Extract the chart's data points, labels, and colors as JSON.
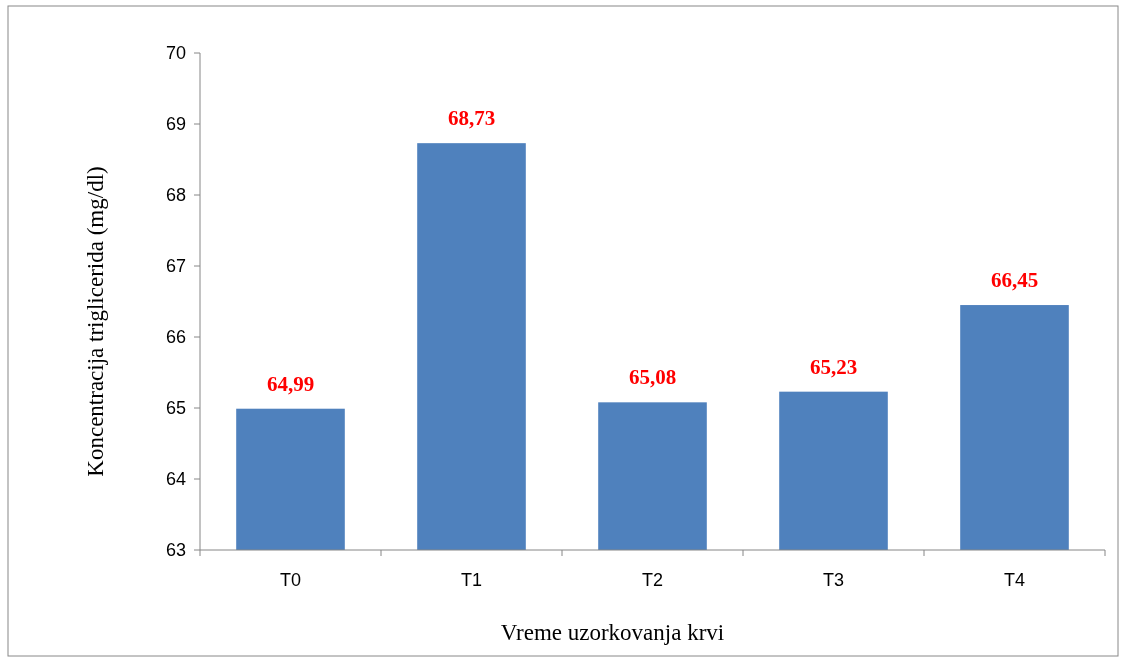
{
  "chart_data": {
    "type": "bar",
    "xlabel": "Vreme uzorkovanja krvi",
    "ylabel": "Koncentracija triglicerida (mg/dl)",
    "categories": [
      "T0",
      "T1",
      "T2",
      "T3",
      "T4"
    ],
    "values": [
      64.99,
      68.73,
      65.08,
      65.23,
      66.45
    ],
    "value_labels": [
      "64,99",
      "68,73",
      "65,08",
      "65,23",
      "66,45"
    ],
    "color": "#4f81bd",
    "ylim": [
      63,
      70
    ],
    "yticks": [
      63,
      64,
      65,
      66,
      67,
      68,
      69,
      70
    ]
  }
}
